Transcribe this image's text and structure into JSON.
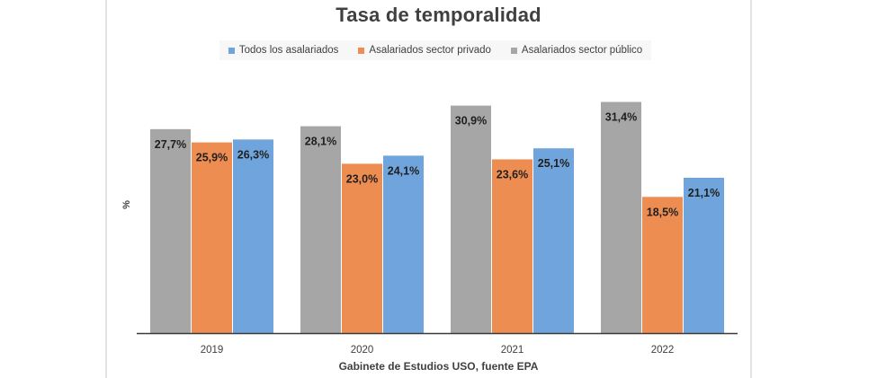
{
  "chart_data": {
    "type": "bar",
    "title": "Tasa de temporalidad",
    "xlabel": "Gabinete de Estudios USO, fuente EPA",
    "ylabel": "%",
    "categories": [
      "2019",
      "2020",
      "2021",
      "2022"
    ],
    "series": [
      {
        "name": "Asalariados sector público",
        "color": "#a6a6a6",
        "values": [
          27.7,
          28.1,
          30.9,
          31.4
        ],
        "labels": [
          "27,7%",
          "28,1%",
          "30,9%",
          "31,4%"
        ]
      },
      {
        "name": "Asalariados sector privado",
        "color": "#ed8d52",
        "values": [
          25.9,
          23.0,
          23.6,
          18.5
        ],
        "labels": [
          "25,9%",
          "23,0%",
          "23,6%",
          "18,5%"
        ]
      },
      {
        "name": "Todos los asalariados",
        "color": "#6fa5dc",
        "values": [
          26.3,
          24.1,
          25.1,
          21.1
        ],
        "labels": [
          "26,3%",
          "24,1%",
          "25,1%",
          "21,1%"
        ]
      }
    ],
    "legend_order": [
      "Todos los asalariados",
      "Asalariados sector privado",
      "Asalariados sector público"
    ],
    "ylim": [
      0,
      34
    ],
    "grid": false,
    "legend_position": "top-center"
  },
  "legend": [
    {
      "label": "Todos los asalariados",
      "color": "#6fa5dc"
    },
    {
      "label": "Asalariados sector privado",
      "color": "#ed8d52"
    },
    {
      "label": "Asalariados sector público",
      "color": "#a6a6a6"
    }
  ]
}
